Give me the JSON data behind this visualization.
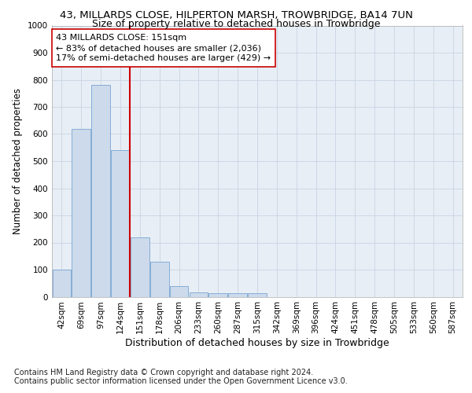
{
  "title": "43, MILLARDS CLOSE, HILPERTON MARSH, TROWBRIDGE, BA14 7UN",
  "subtitle": "Size of property relative to detached houses in Trowbridge",
  "xlabel": "Distribution of detached houses by size in Trowbridge",
  "ylabel": "Number of detached properties",
  "bar_labels": [
    "42sqm",
    "69sqm",
    "97sqm",
    "124sqm",
    "151sqm",
    "178sqm",
    "206sqm",
    "233sqm",
    "260sqm",
    "287sqm",
    "315sqm",
    "342sqm",
    "369sqm",
    "396sqm",
    "424sqm",
    "451sqm",
    "478sqm",
    "505sqm",
    "533sqm",
    "560sqm",
    "587sqm"
  ],
  "bar_values": [
    100,
    620,
    780,
    540,
    220,
    130,
    40,
    15,
    12,
    12,
    12,
    0,
    0,
    0,
    0,
    0,
    0,
    0,
    0,
    0,
    0
  ],
  "bar_color": "#ccdaeb",
  "bar_edge_color": "#6699cc",
  "vline_color": "#cc0000",
  "vline_x": 3.5,
  "ylim": [
    0,
    1000
  ],
  "yticks": [
    0,
    100,
    200,
    300,
    400,
    500,
    600,
    700,
    800,
    900,
    1000
  ],
  "annotation_line1": "43 MILLARDS CLOSE: 151sqm",
  "annotation_line2": "← 83% of detached houses are smaller (2,036)",
  "annotation_line3": "17% of semi-detached houses are larger (429) →",
  "annotation_box_color": "#ffffff",
  "annotation_box_edge": "#cc0000",
  "footnote1": "Contains HM Land Registry data © Crown copyright and database right 2024.",
  "footnote2": "Contains public sector information licensed under the Open Government Licence v3.0.",
  "title_fontsize": 9.5,
  "subtitle_fontsize": 9,
  "xlabel_fontsize": 9,
  "ylabel_fontsize": 8.5,
  "tick_fontsize": 7.5,
  "annotation_fontsize": 8,
  "footnote_fontsize": 7,
  "bg_color": "#ffffff",
  "ax_bg_color": "#e8eef5",
  "grid_color": "#c8d4e4"
}
